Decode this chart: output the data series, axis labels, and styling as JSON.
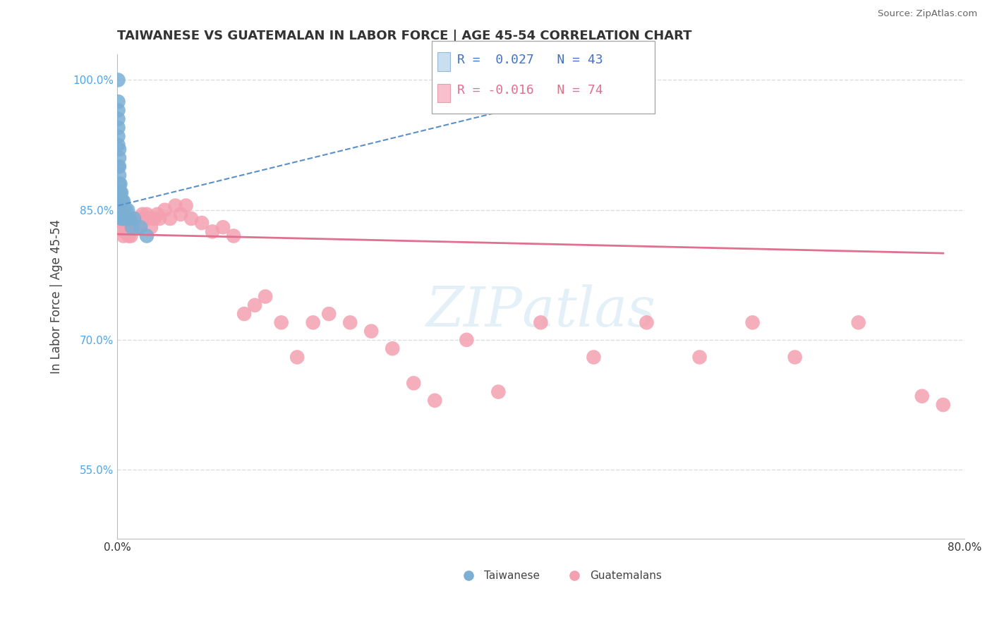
{
  "title": "TAIWANESE VS GUATEMALAN IN LABOR FORCE | AGE 45-54 CORRELATION CHART",
  "source": "Source: ZipAtlas.com",
  "ylabel": "In Labor Force | Age 45-54",
  "xlim": [
    0.0,
    0.8
  ],
  "ylim": [
    0.47,
    1.03
  ],
  "xticks": [
    0.0,
    0.1,
    0.2,
    0.3,
    0.4,
    0.5,
    0.6,
    0.7,
    0.8
  ],
  "xticklabels": [
    "0.0%",
    "",
    "",
    "",
    "",
    "",
    "",
    "",
    "80.0%"
  ],
  "yticks": [
    0.55,
    0.7,
    0.85,
    1.0
  ],
  "yticklabels": [
    "55.0%",
    "70.0%",
    "85.0%",
    "100.0%"
  ],
  "taiwanese_color": "#7bafd4",
  "guatemalan_color": "#f4a0b0",
  "taiwanese_trend_color": "#5b8fc9",
  "guatemalan_trend_color": "#e07090",
  "legend_box_color": "#c8dff0",
  "legend_pink_color": "#f9c0cc",
  "R_taiwanese": 0.027,
  "N_taiwanese": 43,
  "R_guatemalan": -0.016,
  "N_guatemalan": 74,
  "background_color": "#ffffff",
  "grid_color": "#dddddd",
  "tw_trend_x0": 0.001,
  "tw_trend_x1": 0.4,
  "tw_trend_y0": 0.855,
  "tw_trend_y1": 0.975,
  "gu_trend_x0": 0.001,
  "gu_trend_x1": 0.78,
  "gu_trend_y0": 0.822,
  "gu_trend_y1": 0.8,
  "taiwanese_x": [
    0.001,
    0.001,
    0.001,
    0.001,
    0.001,
    0.001,
    0.001,
    0.001,
    0.002,
    0.002,
    0.002,
    0.002,
    0.002,
    0.002,
    0.002,
    0.002,
    0.003,
    0.003,
    0.003,
    0.003,
    0.003,
    0.003,
    0.004,
    0.004,
    0.004,
    0.004,
    0.005,
    0.005,
    0.005,
    0.006,
    0.006,
    0.006,
    0.007,
    0.007,
    0.008,
    0.009,
    0.01,
    0.011,
    0.012,
    0.014,
    0.016,
    0.022,
    0.028
  ],
  "taiwanese_y": [
    1.0,
    0.975,
    0.965,
    0.955,
    0.945,
    0.935,
    0.925,
    0.9,
    0.92,
    0.91,
    0.9,
    0.89,
    0.88,
    0.87,
    0.86,
    0.85,
    0.88,
    0.87,
    0.86,
    0.86,
    0.85,
    0.85,
    0.87,
    0.86,
    0.85,
    0.84,
    0.86,
    0.85,
    0.84,
    0.86,
    0.85,
    0.84,
    0.85,
    0.84,
    0.85,
    0.84,
    0.85,
    0.84,
    0.84,
    0.83,
    0.84,
    0.83,
    0.82
  ],
  "guatemalan_x": [
    0.001,
    0.002,
    0.003,
    0.003,
    0.004,
    0.005,
    0.005,
    0.006,
    0.006,
    0.006,
    0.007,
    0.007,
    0.008,
    0.008,
    0.009,
    0.009,
    0.01,
    0.01,
    0.011,
    0.011,
    0.012,
    0.013,
    0.013,
    0.014,
    0.015,
    0.016,
    0.017,
    0.018,
    0.019,
    0.02,
    0.021,
    0.022,
    0.023,
    0.024,
    0.026,
    0.028,
    0.03,
    0.032,
    0.035,
    0.038,
    0.04,
    0.045,
    0.05,
    0.055,
    0.06,
    0.065,
    0.07,
    0.08,
    0.09,
    0.1,
    0.11,
    0.12,
    0.13,
    0.14,
    0.155,
    0.17,
    0.185,
    0.2,
    0.22,
    0.24,
    0.26,
    0.28,
    0.3,
    0.33,
    0.36,
    0.4,
    0.45,
    0.5,
    0.55,
    0.6,
    0.64,
    0.7,
    0.76,
    0.78
  ],
  "guatemalan_y": [
    0.855,
    0.845,
    0.855,
    0.84,
    0.84,
    0.845,
    0.835,
    0.845,
    0.835,
    0.82,
    0.835,
    0.825,
    0.84,
    0.825,
    0.84,
    0.825,
    0.84,
    0.825,
    0.835,
    0.82,
    0.83,
    0.84,
    0.82,
    0.83,
    0.84,
    0.83,
    0.84,
    0.83,
    0.835,
    0.83,
    0.84,
    0.835,
    0.835,
    0.845,
    0.84,
    0.845,
    0.84,
    0.83,
    0.84,
    0.845,
    0.84,
    0.85,
    0.84,
    0.855,
    0.845,
    0.855,
    0.84,
    0.835,
    0.825,
    0.83,
    0.82,
    0.73,
    0.74,
    0.75,
    0.72,
    0.68,
    0.72,
    0.73,
    0.72,
    0.71,
    0.69,
    0.65,
    0.63,
    0.7,
    0.64,
    0.72,
    0.68,
    0.72,
    0.68,
    0.72,
    0.68,
    0.72,
    0.635,
    0.625
  ]
}
